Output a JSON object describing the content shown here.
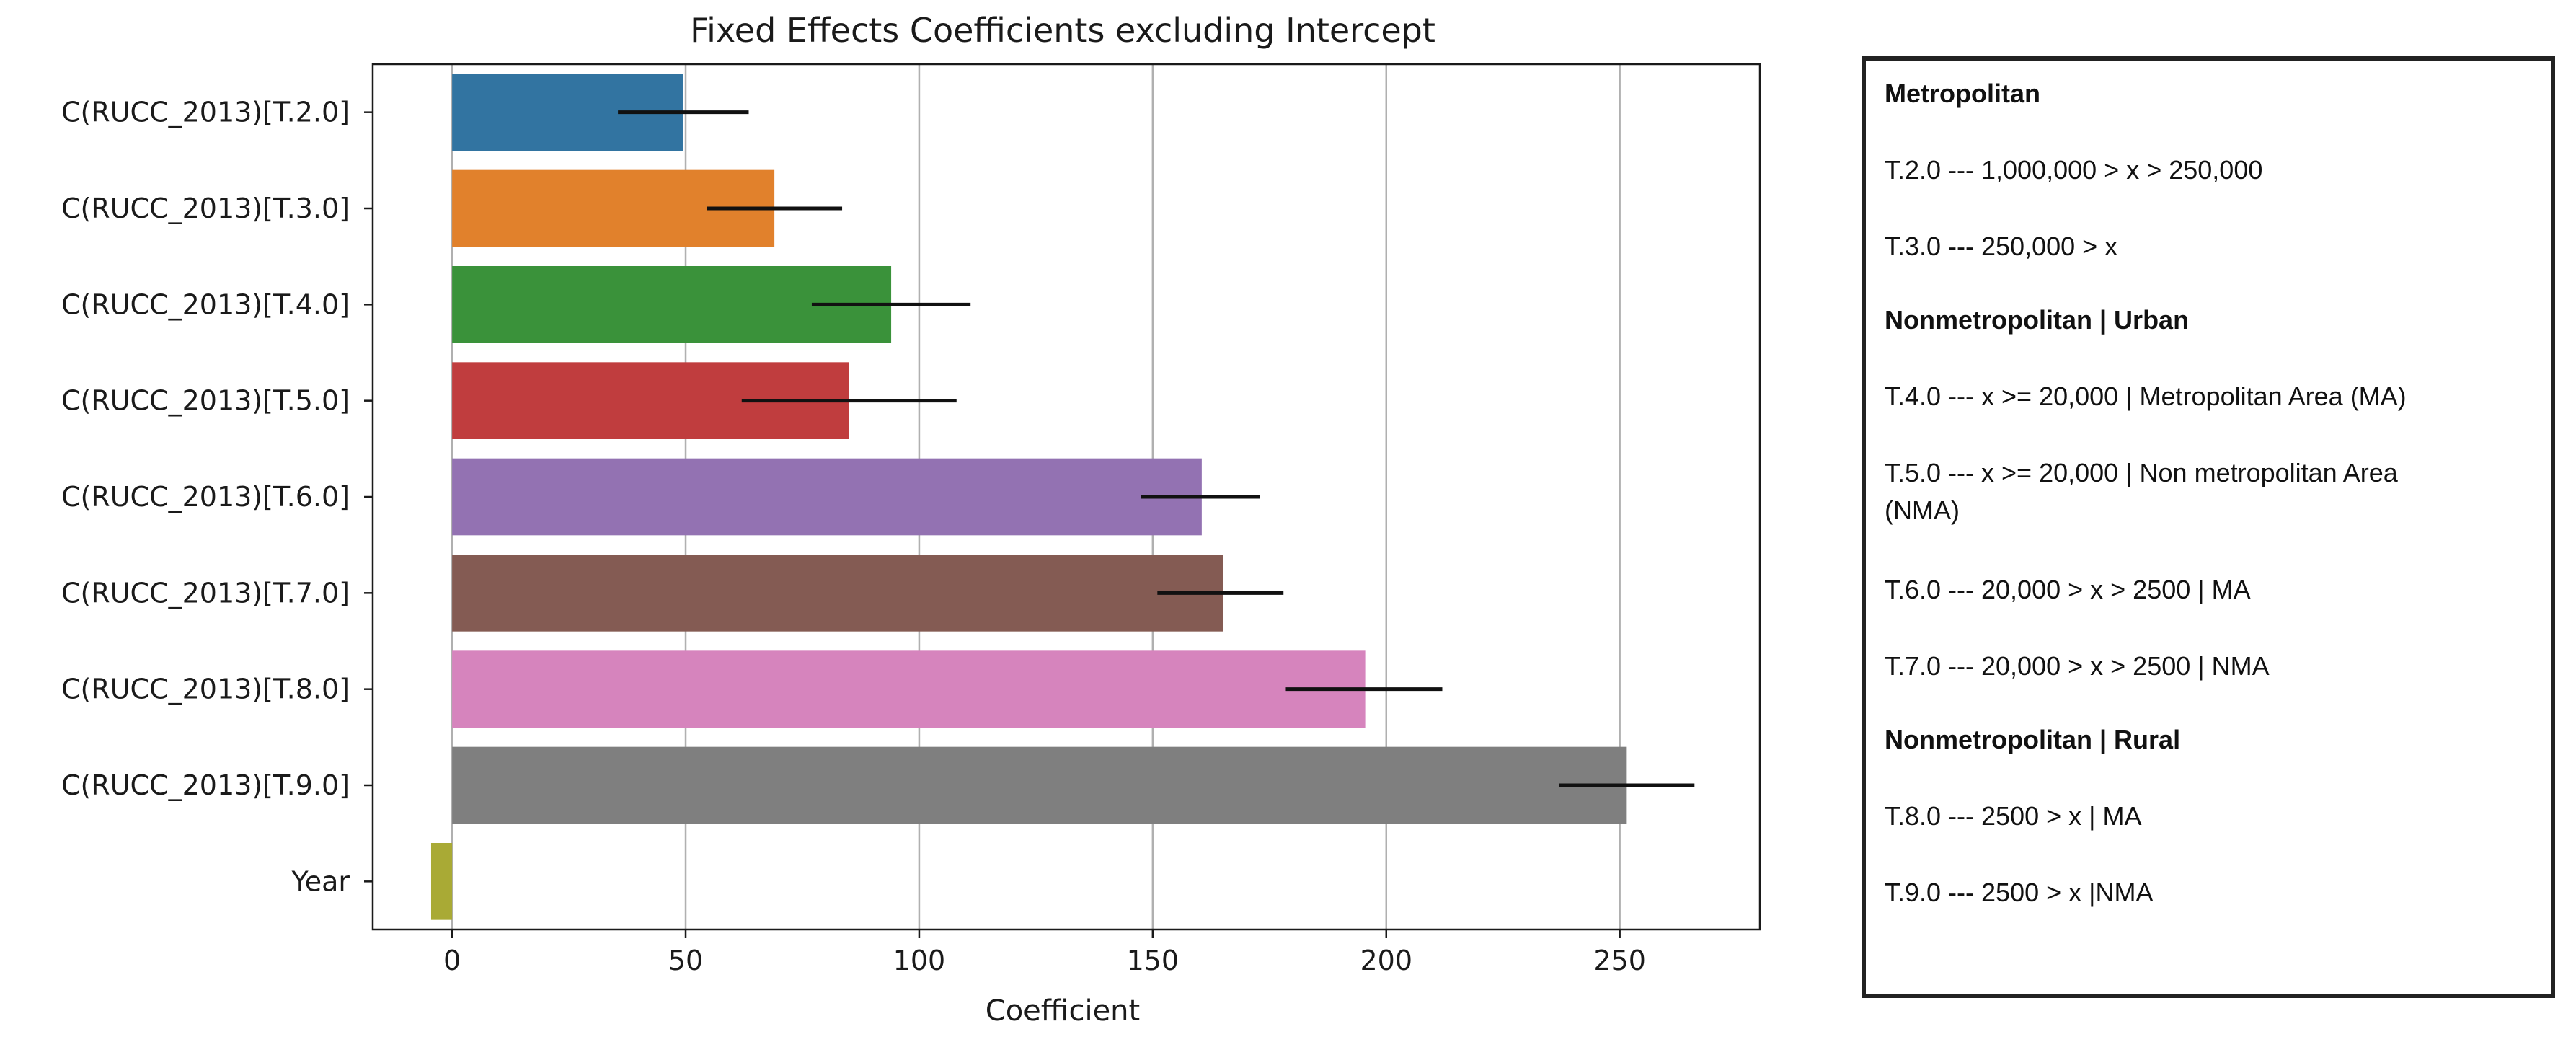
{
  "chart_data": {
    "type": "bar",
    "orientation": "horizontal",
    "title": "Fixed Effects Coefficients excluding Intercept",
    "xlabel": "Coefficient",
    "ylabel": "",
    "xlim": [
      -17,
      280
    ],
    "xticks": [
      0,
      50,
      100,
      150,
      200,
      250
    ],
    "grid": "vertical",
    "categories": [
      "C(RUCC_2013)[T.2.0]",
      "C(RUCC_2013)[T.3.0]",
      "C(RUCC_2013)[T.4.0]",
      "C(RUCC_2013)[T.5.0]",
      "C(RUCC_2013)[T.6.0]",
      "C(RUCC_2013)[T.7.0]",
      "C(RUCC_2013)[T.8.0]",
      "C(RUCC_2013)[T.9.0]",
      "Year"
    ],
    "values": [
      49.5,
      69,
      94,
      85,
      160.5,
      165,
      195.5,
      251.5,
      -4.5
    ],
    "error_low": [
      35.5,
      54.5,
      77,
      62,
      147.5,
      151,
      178.5,
      237
    ],
    "error_high": [
      63.5,
      83.5,
      111,
      108,
      173,
      178,
      212,
      266
    ],
    "colors": [
      "#3274a1",
      "#e1812c",
      "#3a923a",
      "#c03d3e",
      "#9372b2",
      "#845b53",
      "#d684bd",
      "#7f7f7f",
      "#a9aa35"
    ]
  },
  "legend": {
    "lines": [
      {
        "text": "Metropolitan",
        "bold": true
      },
      {
        "text": "T.2.0 --- 1,000,000 > x > 250,000",
        "bold": false
      },
      {
        "text": "T.3.0 --- 250,000 > x",
        "bold": false
      },
      {
        "text": "Nonmetropolitan | Urban",
        "bold": true
      },
      {
        "text": "T.4.0 --- x >= 20,000 | Metropolitan Area (MA)",
        "bold": false
      },
      {
        "text": "T.5.0 --- x >= 20,000 | Non metropolitan Area",
        "bold": false
      },
      {
        "text": "(NMA)",
        "bold": false
      },
      {
        "text": "T.6.0 --- 20,000 > x > 2500 | MA",
        "bold": false
      },
      {
        "text": "T.7.0 --- 20,000 > x > 2500 | NMA",
        "bold": false
      },
      {
        "text": "Nonmetropolitan | Rural",
        "bold": true
      },
      {
        "text": "T.8.0 --- 2500 > x | MA",
        "bold": false
      },
      {
        "text": "T.9.0 --- 2500 > x |NMA",
        "bold": false
      }
    ]
  }
}
